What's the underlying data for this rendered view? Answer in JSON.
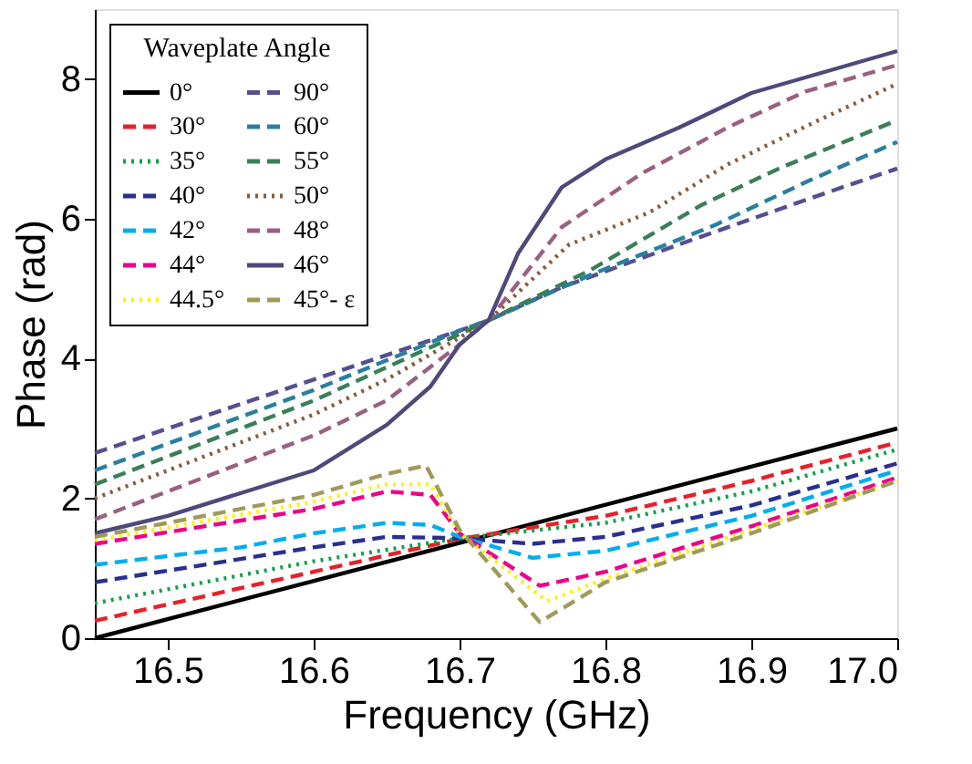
{
  "chart_data": {
    "type": "line",
    "xlabel": "Frequency (GHz)",
    "ylabel": "Phase (rad)",
    "legend_title": "Waveplate Angle",
    "legend": "top left",
    "grid": false,
    "marker": "none",
    "xlim": [
      16.45,
      17.0
    ],
    "xticks": [
      16.5,
      16.6,
      16.7,
      16.8,
      16.9,
      {
        "value": 17.0,
        "label": "17.0"
      }
    ],
    "ylim": [
      0,
      9
    ],
    "yticks": [
      0,
      2,
      4,
      6,
      8
    ],
    "series": [
      {
        "name": "0°",
        "color": "#000000",
        "line_style": "solid",
        "x": [
          16.45,
          17.0
        ],
        "values": [
          0,
          3.0
        ]
      },
      {
        "name": "90°",
        "color": "#554f92",
        "line_style": "dashed",
        "x": [
          16.45,
          16.6,
          16.7,
          16.72,
          16.77,
          16.85,
          16.94,
          17.0
        ],
        "values": [
          2.65,
          3.7,
          4.4,
          4.55,
          5.02,
          5.63,
          6.29,
          6.72
        ]
      },
      {
        "name": "30°",
        "color": "#e8202a",
        "line_style": "dashed",
        "x": [
          16.45,
          16.6,
          16.7,
          16.8,
          16.9,
          17.0
        ],
        "values": [
          0.25,
          0.95,
          1.42,
          1.75,
          2.25,
          2.8
        ]
      },
      {
        "name": "60°",
        "color": "#2a7fa0",
        "line_style": "dashed",
        "x": [
          16.45,
          16.6,
          16.7,
          16.72,
          16.79,
          16.875,
          16.94,
          17.0
        ],
        "values": [
          2.4,
          3.55,
          4.4,
          4.55,
          5.2,
          5.91,
          6.55,
          7.1
        ]
      },
      {
        "name": "35°",
        "color": "#12a14a",
        "line_style": "dotted",
        "x": [
          16.45,
          16.5,
          16.6,
          16.7,
          16.8,
          16.9,
          17.0
        ],
        "values": [
          0.5,
          0.7,
          1.1,
          1.43,
          1.65,
          2.1,
          2.7
        ]
      },
      {
        "name": "55°",
        "color": "#3a7f5a",
        "line_style": "dashed",
        "x": [
          16.45,
          16.6,
          16.7,
          16.72,
          16.79,
          16.866,
          16.92,
          17.0
        ],
        "values": [
          2.2,
          3.4,
          4.35,
          4.55,
          5.27,
          6.2,
          6.73,
          7.41
        ]
      },
      {
        "name": "40°",
        "color": "#2a2f8f",
        "line_style": "dashed",
        "x": [
          16.45,
          16.6,
          16.65,
          16.7,
          16.75,
          16.8,
          16.9,
          17.0
        ],
        "values": [
          0.8,
          1.3,
          1.45,
          1.43,
          1.35,
          1.45,
          1.9,
          2.5
        ]
      },
      {
        "name": "50°",
        "color": "#8b5a3c",
        "line_style": "dotted",
        "x": [
          16.45,
          16.6,
          16.65,
          16.7,
          16.72,
          16.775,
          16.83,
          16.884,
          16.946,
          17.0
        ],
        "values": [
          2.0,
          3.2,
          3.7,
          4.3,
          4.55,
          5.63,
          6.09,
          6.78,
          7.41,
          7.93
        ]
      },
      {
        "name": "42°",
        "color": "#00aeef",
        "line_style": "dashed",
        "x": [
          16.45,
          16.55,
          16.6,
          16.65,
          16.68,
          16.7,
          16.75,
          16.8,
          16.9,
          17.0
        ],
        "values": [
          1.05,
          1.3,
          1.5,
          1.65,
          1.62,
          1.45,
          1.15,
          1.25,
          1.75,
          2.4
        ]
      },
      {
        "name": "48°",
        "color": "#9a6080",
        "line_style": "dashed",
        "x": [
          16.45,
          16.5,
          16.6,
          16.65,
          16.7,
          16.72,
          16.77,
          16.825,
          16.884,
          16.937,
          17.0
        ],
        "values": [
          1.7,
          2.1,
          2.9,
          3.4,
          4.2,
          4.55,
          5.88,
          6.65,
          7.31,
          7.82,
          8.2
        ]
      },
      {
        "name": "44°",
        "color": "#ec008c",
        "line_style": "dashed",
        "x": [
          16.45,
          16.6,
          16.65,
          16.68,
          16.7,
          16.755,
          16.8,
          16.9,
          17.0
        ],
        "values": [
          1.35,
          1.85,
          2.1,
          2.05,
          1.5,
          0.75,
          0.95,
          1.6,
          2.3
        ]
      },
      {
        "name": "46°",
        "color": "#4d4a7a",
        "line_style": "solid",
        "x": [
          16.45,
          16.5,
          16.6,
          16.65,
          16.68,
          16.7,
          16.72,
          16.74,
          16.77,
          16.8,
          16.85,
          16.9,
          16.95,
          17.0
        ],
        "values": [
          1.5,
          1.75,
          2.4,
          3.05,
          3.6,
          4.2,
          4.55,
          5.5,
          6.45,
          6.85,
          7.3,
          7.8,
          8.1,
          8.4
        ]
      },
      {
        "name": "44.5°",
        "color": "#fff200",
        "line_style": "dotted",
        "x": [
          16.45,
          16.6,
          16.65,
          16.68,
          16.7,
          16.76,
          16.8,
          16.9,
          17.0
        ],
        "values": [
          1.4,
          1.95,
          2.2,
          2.2,
          1.5,
          0.53,
          0.85,
          1.55,
          2.25
        ]
      },
      {
        "name": "45°- ε",
        "color": "#a09a5a",
        "line_style": "dashed",
        "x": [
          16.45,
          16.6,
          16.65,
          16.677,
          16.7,
          16.755,
          16.8,
          16.9,
          17.0
        ],
        "values": [
          1.45,
          2.05,
          2.35,
          2.47,
          1.55,
          0.23,
          0.8,
          1.5,
          2.25
        ]
      }
    ]
  }
}
